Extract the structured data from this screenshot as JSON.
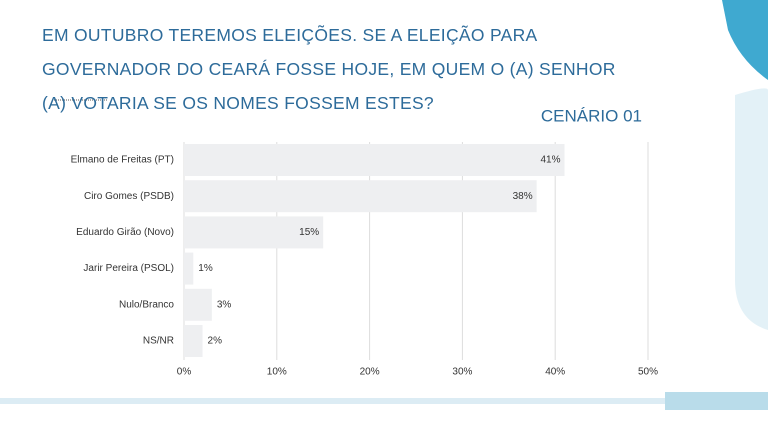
{
  "chart_data": {
    "type": "hbar",
    "title": "EM OUTUBRO TEREMOS ELEIÇÕES. SE A ELEIÇÃO PARA GOVERNADOR DO CEARÁ FOSSE HOJE, EM QUEM O (A) SENHOR (A) VOTARIA SE OS NOMES FOSSEM ESTES?",
    "subtitle": "CENÁRIO 01",
    "categories": [
      "Elmano de Freitas (PT)",
      "Ciro Gomes (PSDB)",
      "Eduardo Girão (Novo)",
      "Jarir Pereira (PSOL)",
      "Nulo/Branco",
      "NS/NR"
    ],
    "values": [
      41,
      38,
      15,
      1,
      3,
      2
    ],
    "value_labels": [
      "41%",
      "38%",
      "15%",
      "1%",
      "3%",
      "2%"
    ],
    "color": "#eeeff1",
    "xlim": [
      0,
      50
    ],
    "xticks": [
      {
        "value": 0,
        "label": "0%"
      },
      {
        "value": 10,
        "label": "10%"
      },
      {
        "value": 20,
        "label": "20%"
      },
      {
        "value": 30,
        "label": "30%"
      },
      {
        "value": 40,
        "label": "40%"
      },
      {
        "value": 50,
        "label": "50%"
      }
    ],
    "grid": true
  }
}
